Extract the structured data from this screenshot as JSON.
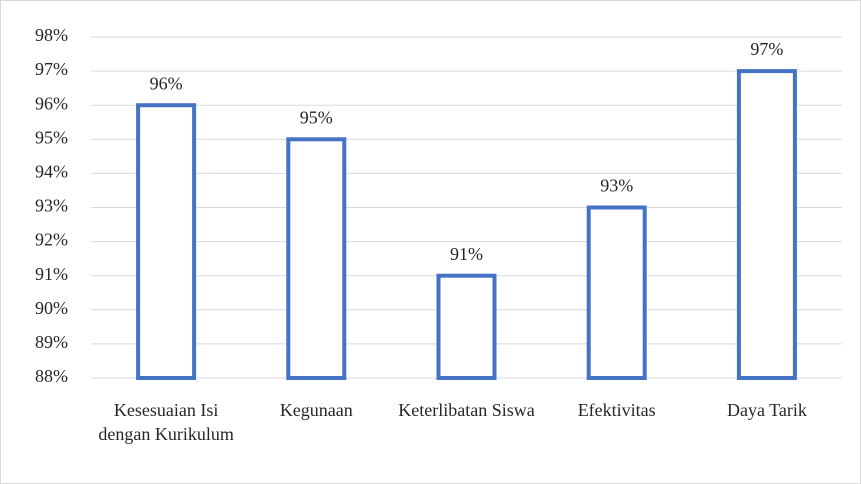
{
  "chart_data": {
    "type": "bar",
    "categories": [
      "Kesesuaian Isi dengan Kurikulum",
      "Kegunaan",
      "Keterlibatan Siswa",
      "Efektivitas",
      "Daya Tarik"
    ],
    "values": [
      96,
      95,
      91,
      93,
      97
    ],
    "value_labels": [
      "96%",
      "95%",
      "91%",
      "93%",
      "97%"
    ],
    "color": "#4472c4",
    "ylim": [
      88,
      98
    ],
    "yticks": [
      {
        "value": 88,
        "label": "88%"
      },
      {
        "value": 89,
        "label": "89%"
      },
      {
        "value": 90,
        "label": "90%"
      },
      {
        "value": 91,
        "label": "91%"
      },
      {
        "value": 92,
        "label": "92%"
      },
      {
        "value": 93,
        "label": "93%"
      },
      {
        "value": 94,
        "label": "94%"
      },
      {
        "value": 95,
        "label": "95%"
      },
      {
        "value": 96,
        "label": "96%"
      },
      {
        "value": 97,
        "label": "97%"
      },
      {
        "value": 98,
        "label": "98%"
      }
    ],
    "grid": true
  }
}
